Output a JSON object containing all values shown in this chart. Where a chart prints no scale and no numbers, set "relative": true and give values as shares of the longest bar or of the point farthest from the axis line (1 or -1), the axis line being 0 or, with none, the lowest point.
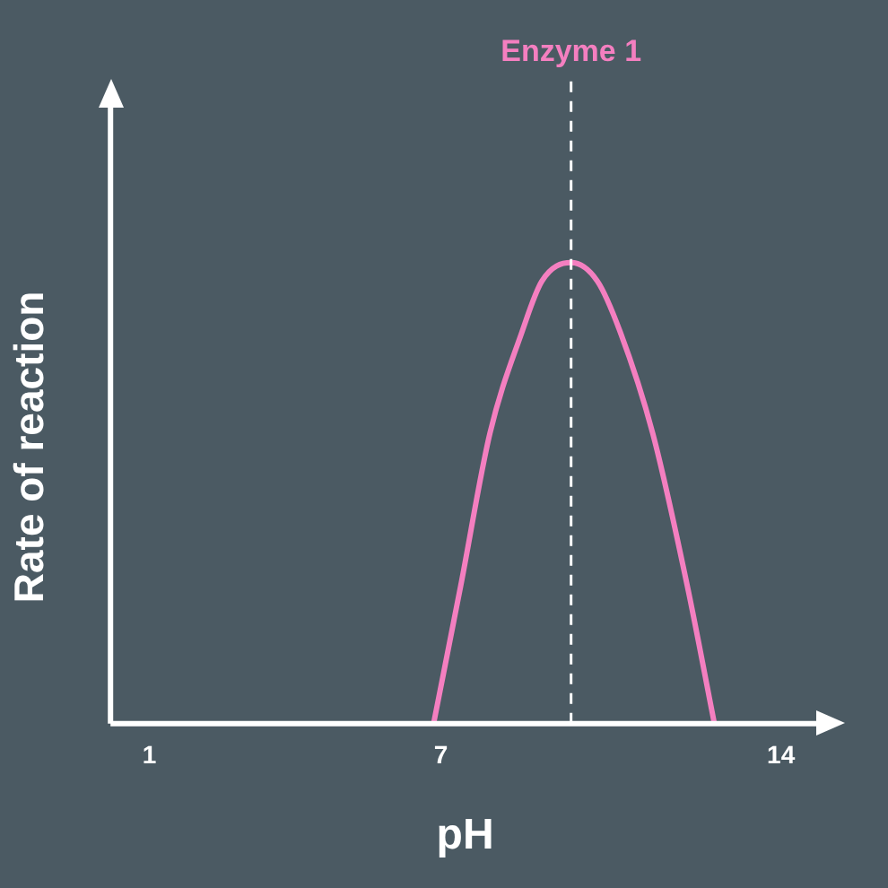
{
  "chart_data": {
    "type": "line",
    "relative": true,
    "xlabel": "pH",
    "ylabel": "Rate of reaction",
    "xlim": [
      0.2,
      14.8
    ],
    "xticks": [
      1,
      7,
      14
    ],
    "grid": false,
    "legend": false,
    "marker": "none",
    "line_style": "solid",
    "series": [
      {
        "color": "#f47fc0",
        "x": [
          6.85,
          7.41,
          8.01,
          8.67,
          9.08,
          9.68,
          10.22,
          10.69,
          11.36,
          12.07,
          12.63
        ],
        "values": [
          0,
          0.3,
          0.63,
          0.85,
          0.96,
          1,
          0.96,
          0.85,
          0.63,
          0.3,
          0
        ]
      }
    ],
    "ref_lines": [
      {
        "axis": "x",
        "value": 9.68,
        "label": "Enzyme 1",
        "color": "#ffffff",
        "line_style": "dashed"
      }
    ]
  }
}
